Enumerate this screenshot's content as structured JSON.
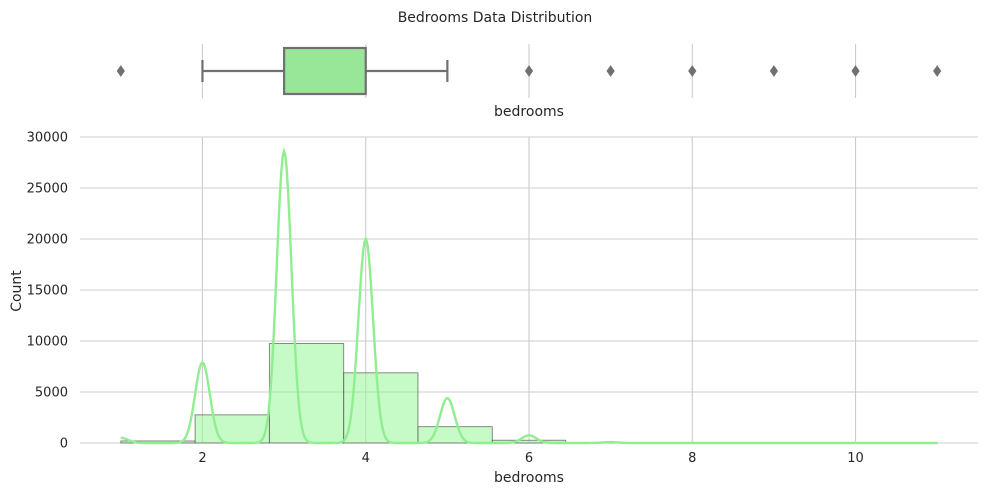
{
  "chart_data": [
    {
      "type": "box",
      "title": "Bedrooms Data Distribution",
      "xlabel": "bedrooms",
      "xlim": [
        0.5,
        11.5
      ],
      "box": {
        "whisker_low": 2,
        "q1": 3,
        "q3": 4,
        "whisker_high": 5
      },
      "outliers": [
        1,
        6,
        7,
        8,
        9,
        10,
        11
      ],
      "fill_color": "#98e698",
      "line_color": "#707070"
    },
    {
      "type": "bar",
      "title": "",
      "xlabel": "bedrooms",
      "ylabel": "Count",
      "xlim": [
        0.5,
        11.5
      ],
      "ylim": [
        0,
        30000
      ],
      "x_ticks": [
        2,
        4,
        6,
        8,
        10
      ],
      "y_ticks": [
        0,
        5000,
        10000,
        15000,
        20000,
        25000,
        30000
      ],
      "grid": true,
      "bar_color": "#98f598",
      "kde_color": "#90ee90",
      "bins": [
        {
          "x0": 1.0,
          "x1": 1.91,
          "count": 200
        },
        {
          "x0": 1.91,
          "x1": 2.82,
          "count": 2760
        },
        {
          "x0": 2.82,
          "x1": 3.73,
          "count": 9750
        },
        {
          "x0": 3.73,
          "x1": 4.64,
          "count": 6880
        },
        {
          "x0": 4.64,
          "x1": 5.55,
          "count": 1600
        },
        {
          "x0": 5.55,
          "x1": 6.45,
          "count": 270
        },
        {
          "x0": 6.45,
          "x1": 7.36,
          "count": 40
        },
        {
          "x0": 7.36,
          "x1": 8.27,
          "count": 13
        },
        {
          "x0": 8.27,
          "x1": 9.18,
          "count": 6
        },
        {
          "x0": 9.18,
          "x1": 10.09,
          "count": 3
        },
        {
          "x0": 10.09,
          "x1": 11.0,
          "count": 1
        }
      ],
      "kde_peaks": [
        {
          "x": 1.0,
          "height": 500
        },
        {
          "x": 2.0,
          "height": 7900
        },
        {
          "x": 3.0,
          "height": 28600
        },
        {
          "x": 4.0,
          "height": 20000
        },
        {
          "x": 5.0,
          "height": 4400
        },
        {
          "x": 6.0,
          "height": 750
        },
        {
          "x": 7.0,
          "height": 90
        }
      ]
    }
  ]
}
